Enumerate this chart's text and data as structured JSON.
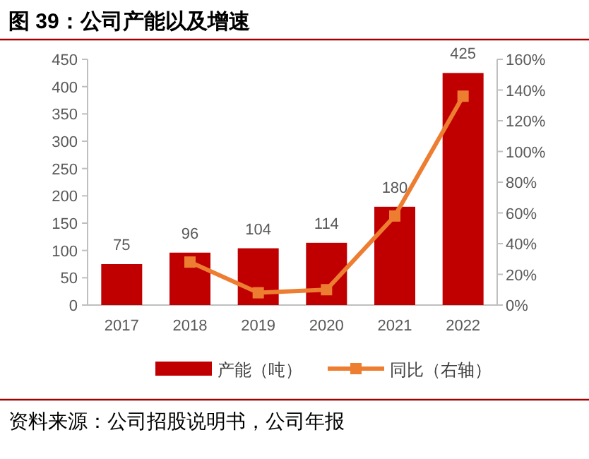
{
  "chart_data": {
    "type": "bar",
    "title": "图 39：公司产能以及增速",
    "categories": [
      "2017",
      "2018",
      "2019",
      "2020",
      "2021",
      "2022"
    ],
    "series": [
      {
        "name": "产能（吨）",
        "color": "#c00000",
        "values": [
          75,
          96,
          104,
          114,
          180,
          425
        ],
        "value_labels": [
          "75",
          "96",
          "104",
          "114",
          "180",
          "425"
        ]
      },
      {
        "name": "同比（右轴）",
        "type": "line",
        "axis": "y2",
        "color": "#ed7d31",
        "values": [
          null,
          28,
          8,
          10,
          58,
          136
        ]
      }
    ],
    "ylim": [
      0,
      450
    ],
    "yticks": [
      0,
      50,
      100,
      150,
      200,
      250,
      300,
      350,
      400,
      450
    ],
    "y2lim": [
      0,
      160
    ],
    "y2ticks": [
      {
        "value": 0,
        "label": "0%"
      },
      {
        "value": 20,
        "label": "20%"
      },
      {
        "value": 40,
        "label": "40%"
      },
      {
        "value": 60,
        "label": "60%"
      },
      {
        "value": 80,
        "label": "80%"
      },
      {
        "value": 100,
        "label": "100%"
      },
      {
        "value": 120,
        "label": "120%"
      },
      {
        "value": 140,
        "label": "140%"
      },
      {
        "value": 160,
        "label": "160%"
      }
    ],
    "marker": "square",
    "legend": "bottom",
    "grid": false,
    "annotations": [
      "资料来源：公司招股说明书，公司年报"
    ]
  }
}
